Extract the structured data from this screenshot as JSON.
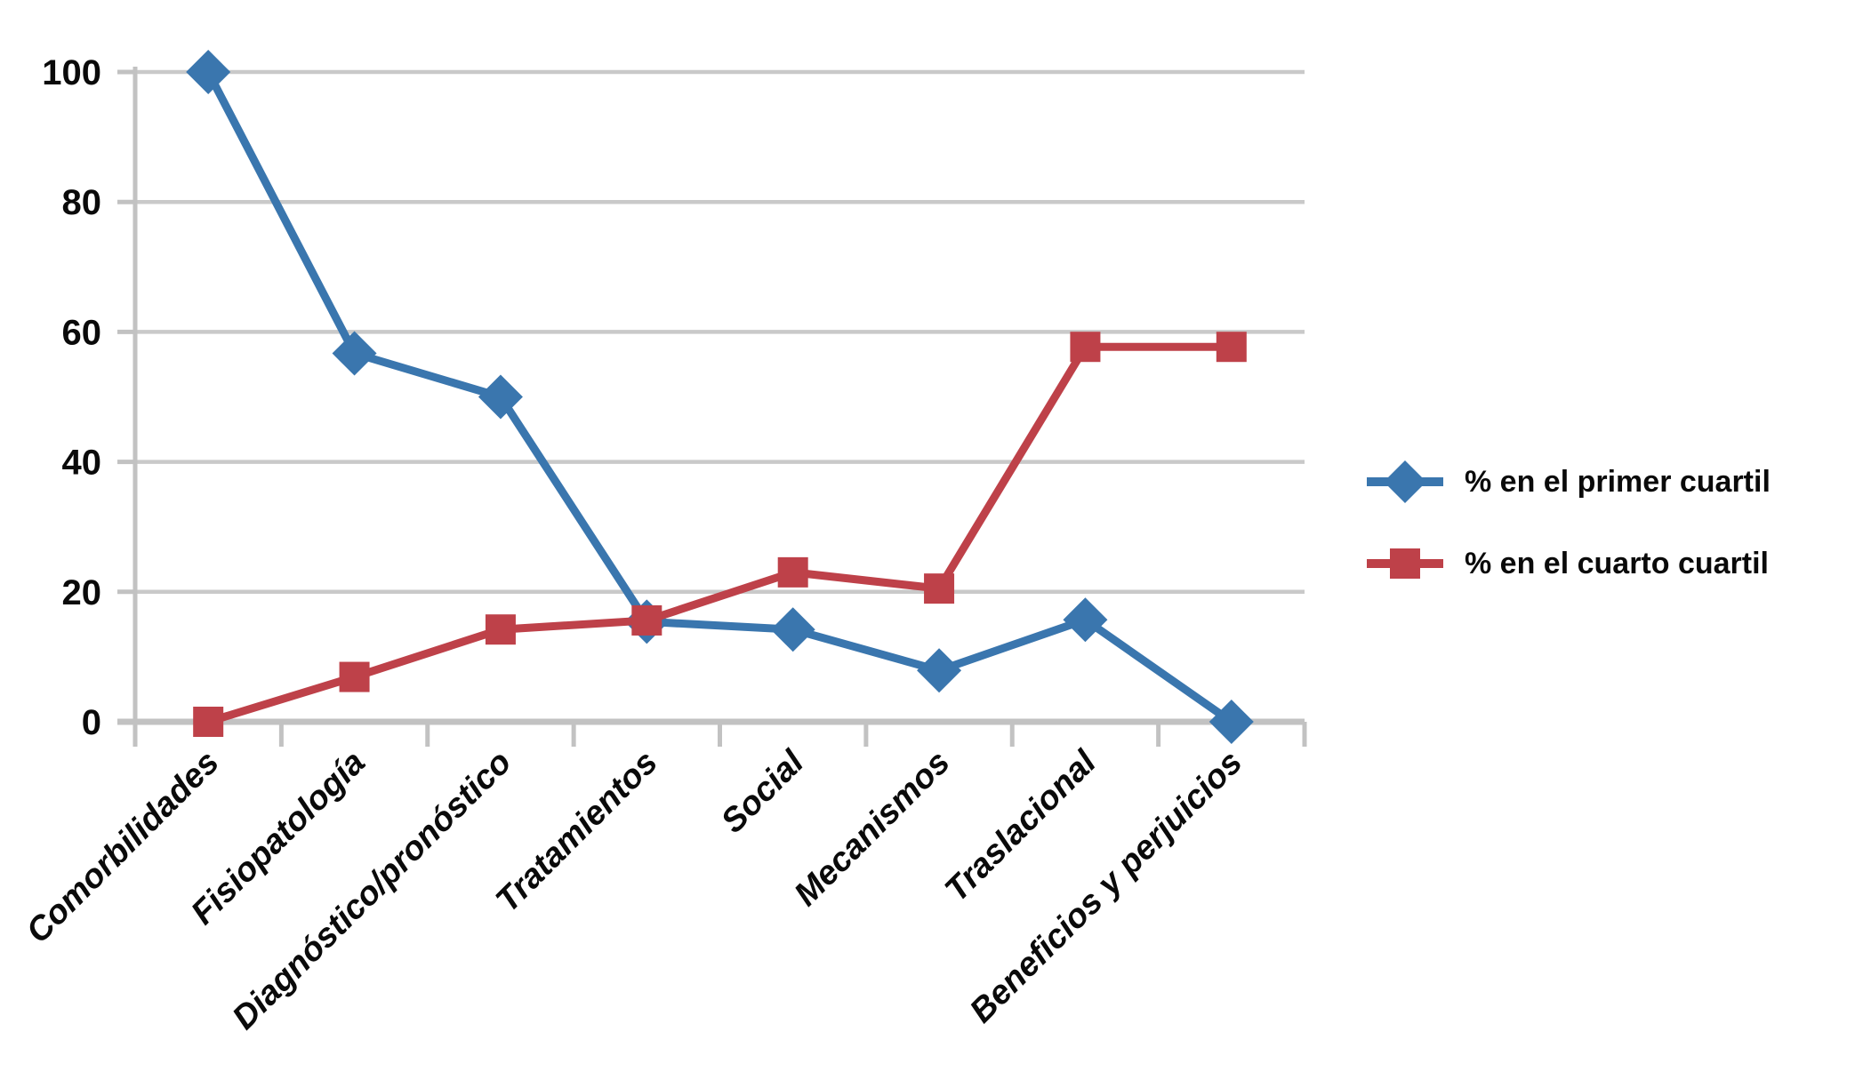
{
  "chart_data": {
    "type": "line",
    "categories": [
      "Comorbilidades",
      "Fisiopatología",
      "Diagnóstico/pronóstico",
      "Tratamientos",
      "Social",
      "Mecanismos",
      "Traslacional",
      "Beneficios y perjuicios"
    ],
    "series": [
      {
        "name": "% en el primer cuartil",
        "marker": "diamond",
        "color": "#3A76AE",
        "values": [
          100,
          56.7,
          50,
          15.4,
          14.2,
          7.9,
          15.7,
          0
        ]
      },
      {
        "name": "% en el cuarto cuartil",
        "marker": "square",
        "color": "#BE4149",
        "values": [
          0,
          6.9,
          14.2,
          15.6,
          23,
          20.5,
          57.7,
          57.7
        ]
      }
    ],
    "title": "",
    "xlabel": "",
    "ylabel": "",
    "ylim": [
      0,
      100
    ],
    "y_ticks": [
      0,
      20,
      40,
      60,
      80,
      100
    ],
    "grid": "horizontal",
    "legend_position": "right",
    "colors": {
      "gridline": "#C9C9C9",
      "axis": "#C2C2C2",
      "text": "#0A0A0A",
      "background": "#FFFFFF"
    }
  }
}
